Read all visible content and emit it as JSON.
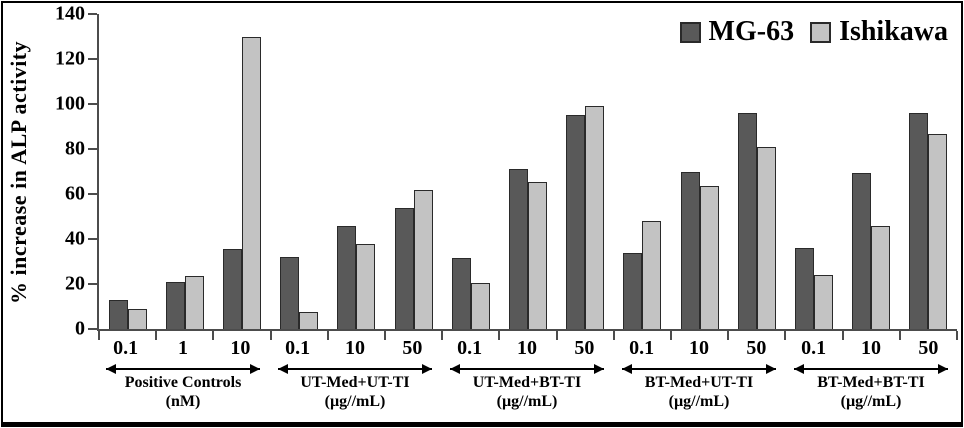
{
  "figure": {
    "background": "#ffffff",
    "frame_color": "#000000"
  },
  "chart_data": {
    "type": "bar",
    "title": "",
    "xlabel": "",
    "ylabel": "% increase in ALP activity",
    "ylim": [
      0,
      140
    ],
    "yticks": [
      0,
      20,
      40,
      60,
      80,
      100,
      120,
      140
    ],
    "grid": false,
    "legend_position": "top-right",
    "legend": [
      {
        "name": "MG-63",
        "color": "#595959"
      },
      {
        "name": "Ishikawa",
        "color": "#c3c3c3"
      }
    ],
    "colors": {
      "bar_border": "#2a2a2a",
      "axis": "#4c4c4c",
      "text": "#000000"
    },
    "groups": [
      {
        "label": "Positive Controls",
        "unit": "(nM)",
        "categories": [
          "0.1",
          "1",
          "10"
        ],
        "series": [
          {
            "name": "MG-63",
            "values": [
              13,
              21,
              35.5
            ]
          },
          {
            "name": "Ishikawa",
            "values": [
              9,
              23.5,
              130
            ]
          }
        ]
      },
      {
        "label": "UT-Med+UT-TI",
        "unit": "(µg//mL)",
        "categories": [
          "0.1",
          "10",
          "50"
        ],
        "series": [
          {
            "name": "MG-63",
            "values": [
              32,
              46,
              54
            ]
          },
          {
            "name": "Ishikawa",
            "values": [
              7.5,
              38,
              62
            ]
          }
        ]
      },
      {
        "label": "UT-Med+BT-TI",
        "unit": "(µg//mL)",
        "categories": [
          "0.1",
          "10",
          "50"
        ],
        "series": [
          {
            "name": "MG-63",
            "values": [
              31.5,
              71,
              95
            ]
          },
          {
            "name": "Ishikawa",
            "values": [
              20.5,
              65.5,
              99
            ]
          }
        ]
      },
      {
        "label": "BT-Med+UT-TI",
        "unit": "(µg//mL)",
        "categories": [
          "0.1",
          "10",
          "50"
        ],
        "series": [
          {
            "name": "MG-63",
            "values": [
              34,
              70,
              96
            ]
          },
          {
            "name": "Ishikawa",
            "values": [
              48,
              63.5,
              81
            ]
          }
        ]
      },
      {
        "label": "BT-Med+BT-TI",
        "unit": "(µg//mL)",
        "categories": [
          "0.1",
          "10",
          "50"
        ],
        "series": [
          {
            "name": "MG-63",
            "values": [
              36,
              69.5,
              96
            ]
          },
          {
            "name": "Ishikawa",
            "values": [
              24,
              46,
              86.5
            ]
          }
        ]
      }
    ]
  }
}
